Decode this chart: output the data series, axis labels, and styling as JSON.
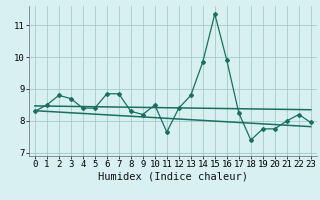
{
  "xlabel": "Humidex (Indice chaleur)",
  "x_values": [
    0,
    1,
    2,
    3,
    4,
    5,
    6,
    7,
    8,
    9,
    10,
    11,
    12,
    13,
    14,
    15,
    16,
    17,
    18,
    19,
    20,
    21,
    22,
    23
  ],
  "y_main": [
    8.3,
    8.5,
    8.8,
    8.7,
    8.4,
    8.4,
    8.85,
    8.85,
    8.3,
    8.2,
    8.5,
    7.65,
    8.4,
    8.8,
    9.85,
    11.35,
    9.9,
    8.25,
    7.4,
    7.75,
    7.75,
    8.0,
    8.2,
    7.95
  ],
  "trend1_x": [
    0,
    23
  ],
  "trend1_y": [
    8.47,
    8.35
  ],
  "trend2_x": [
    0,
    23
  ],
  "trend2_y": [
    8.32,
    7.82
  ],
  "line_color": "#1a6e64",
  "bg_color": "#d8f0f0",
  "grid_color": "#a0cccc",
  "ylim": [
    6.9,
    11.6
  ],
  "yticks": [
    7,
    8,
    9,
    10,
    11
  ],
  "xticks": [
    0,
    1,
    2,
    3,
    4,
    5,
    6,
    7,
    8,
    9,
    10,
    11,
    12,
    13,
    14,
    15,
    16,
    17,
    18,
    19,
    20,
    21,
    22,
    23
  ],
  "tick_fontsize": 6.5,
  "xlabel_fontsize": 7.5
}
